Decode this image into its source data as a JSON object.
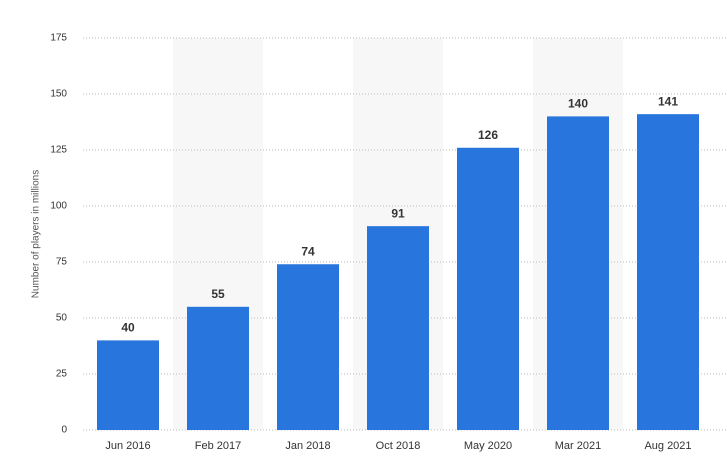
{
  "chart_data": {
    "type": "bar",
    "y_label": "Number of players in millions",
    "categories": [
      "Jun 2016",
      "Feb 2017",
      "Jan 2018",
      "Oct 2018",
      "May 2020",
      "Mar 2021",
      "Aug 2021"
    ],
    "values": [
      40,
      55,
      74,
      91,
      126,
      140,
      141
    ],
    "color": "#2876dd",
    "ylim": [
      0,
      175
    ],
    "yticks": [
      0,
      25,
      50,
      75,
      100,
      125,
      150,
      175
    ],
    "grid": true
  }
}
